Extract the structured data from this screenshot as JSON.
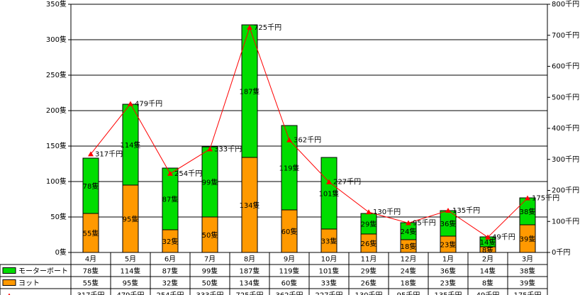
{
  "chart_data": {
    "type": "bar",
    "categories": [
      "4月",
      "5月",
      "6月",
      "7月",
      "8月",
      "9月",
      "10月",
      "11月",
      "12月",
      "1月",
      "2月",
      "3月"
    ],
    "series": [
      {
        "name": "モーターボート",
        "kind": "stacked-bar",
        "color": "#00dd00",
        "values": [
          78,
          114,
          87,
          99,
          187,
          119,
          101,
          29,
          24,
          36,
          14,
          38
        ],
        "labels": [
          "78隻",
          "114隻",
          "87隻",
          "99隻",
          "187隻",
          "119隻",
          "101隻",
          "29隻",
          "24隻",
          "36隻",
          "14隻",
          "38隻"
        ]
      },
      {
        "name": "ヨット",
        "kind": "stacked-bar",
        "color": "#ff9900",
        "values": [
          55,
          95,
          32,
          50,
          134,
          60,
          33,
          26,
          18,
          23,
          8,
          39
        ],
        "labels": [
          "55隻",
          "95隻",
          "32隻",
          "50隻",
          "134隻",
          "60隻",
          "33隻",
          "26隻",
          "18隻",
          "23隻",
          "8隻",
          "39隻"
        ]
      },
      {
        "name": "",
        "kind": "line",
        "axis": "right",
        "color": "#ff0000",
        "values": [
          317,
          479,
          254,
          333,
          725,
          362,
          227,
          130,
          95,
          135,
          49,
          175
        ],
        "labels": [
          "317千円",
          "479千円",
          "254千円",
          "333千円",
          "725千円",
          "362千円",
          "227千円",
          "130千円",
          "95千円",
          "135千円",
          "49千円",
          "175千円"
        ]
      }
    ],
    "y_left": {
      "range": [
        0,
        350
      ],
      "ticks": [
        0,
        50,
        100,
        150,
        200,
        250,
        300,
        350
      ],
      "tick_labels": [
        "0隻",
        "50隻",
        "100隻",
        "150隻",
        "200隻",
        "250隻",
        "300隻",
        "350隻"
      ]
    },
    "y_right": {
      "range": [
        0,
        800
      ],
      "ticks": [
        0,
        100,
        200,
        300,
        400,
        500,
        600,
        700,
        800
      ],
      "tick_labels": [
        "0千円",
        "100千円",
        "200千円",
        "300千円",
        "400千円",
        "500千円",
        "600千円",
        "700千円",
        "800千円"
      ]
    },
    "grid": true,
    "legend": "data-table-below"
  }
}
